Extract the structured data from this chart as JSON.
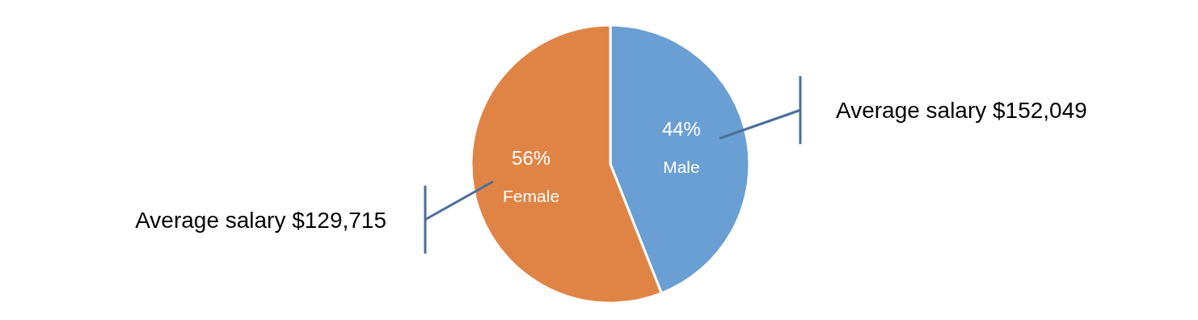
{
  "chart_data": {
    "type": "pie",
    "categories": [
      "Male",
      "Female"
    ],
    "values": [
      44,
      56
    ],
    "colors": [
      "#6a9fd4",
      "#e08445"
    ],
    "value_labels": [
      "44%",
      "56%"
    ],
    "annotations": [
      "Average salary $152,049",
      "Average salary $129,715"
    ]
  }
}
